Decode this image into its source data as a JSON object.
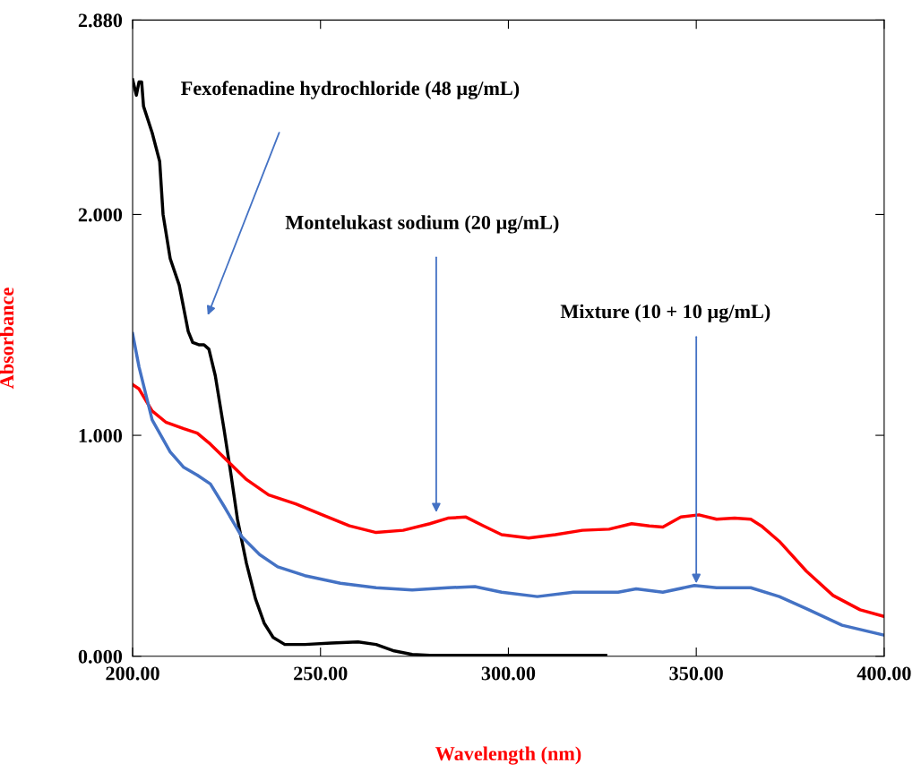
{
  "chart_data": {
    "type": "line",
    "xlabel": "Wavelength (nm)",
    "ylabel": "Absorbance",
    "xlim": [
      200,
      400
    ],
    "ylim": [
      0,
      2.88
    ],
    "xticks": [
      {
        "value": 200,
        "label": "200.00"
      },
      {
        "value": 250,
        "label": "250.00"
      },
      {
        "value": 300,
        "label": "300.00"
      },
      {
        "value": 350,
        "label": "350.00"
      },
      {
        "value": 400,
        "label": "400.00"
      }
    ],
    "yticks": [
      {
        "value": 0,
        "label": "0.000"
      },
      {
        "value": 1,
        "label": "1.000"
      },
      {
        "value": 2,
        "label": "2.000"
      },
      {
        "value": 2.88,
        "label": "2.880"
      }
    ],
    "grid": false,
    "legend": false,
    "marker": "none",
    "line_style": "solid",
    "series": [
      {
        "color": "#000000",
        "x": [
          200,
          201,
          201.7,
          202.4,
          202.9,
          205.2,
          207.2,
          208.1,
          210,
          212.4,
          214.8,
          216,
          217.6,
          219,
          220.3,
          222,
          224.3,
          226.2,
          227.9,
          230.3,
          232.7,
          235,
          237.4,
          240.5,
          245.8,
          252.9,
          260,
          264.8,
          269.6,
          274.4,
          279.1,
          325.9
        ],
        "values": [
          2.61,
          2.54,
          2.6,
          2.6,
          2.49,
          2.37,
          2.24,
          2.0,
          1.8,
          1.68,
          1.47,
          1.42,
          1.41,
          1.41,
          1.39,
          1.27,
          1.03,
          0.82,
          0.62,
          0.42,
          0.26,
          0.15,
          0.085,
          0.053,
          0.053,
          0.06,
          0.065,
          0.053,
          0.024,
          0.008,
          0.004,
          0.004
        ]
      },
      {
        "color": "#ff0000",
        "x": [
          200,
          201.7,
          205.2,
          208.8,
          213.6,
          217.2,
          220.7,
          225.5,
          230.3,
          236.2,
          243.4,
          250.5,
          257.7,
          264.8,
          272,
          279.1,
          283.9,
          288.7,
          293.4,
          298.2,
          305.4,
          312.5,
          319.7,
          326.8,
          332.8,
          337.5,
          341.1,
          345.9,
          350.7,
          355.4,
          360.2,
          364.5,
          367.3,
          372.1,
          379.3,
          386.4,
          393.6,
          400
        ],
        "values": [
          1.23,
          1.21,
          1.11,
          1.06,
          1.03,
          1.01,
          0.96,
          0.88,
          0.8,
          0.73,
          0.69,
          0.64,
          0.59,
          0.56,
          0.57,
          0.6,
          0.625,
          0.63,
          0.59,
          0.55,
          0.535,
          0.55,
          0.57,
          0.575,
          0.6,
          0.59,
          0.585,
          0.63,
          0.64,
          0.62,
          0.625,
          0.62,
          0.59,
          0.52,
          0.385,
          0.275,
          0.21,
          0.18
        ]
      },
      {
        "color": "#4472c4",
        "x": [
          200,
          201.7,
          205.2,
          210,
          213.6,
          217.2,
          220.7,
          224.3,
          229.1,
          233.8,
          238.6,
          245.8,
          255.3,
          264.8,
          274.4,
          283.9,
          291.1,
          298.2,
          307.7,
          317.3,
          329.2,
          334,
          341.1,
          349.5,
          355.4,
          364.5,
          372.1,
          379.3,
          388.8,
          400
        ],
        "values": [
          1.46,
          1.31,
          1.07,
          0.925,
          0.855,
          0.82,
          0.78,
          0.68,
          0.54,
          0.46,
          0.405,
          0.365,
          0.33,
          0.31,
          0.3,
          0.31,
          0.315,
          0.29,
          0.27,
          0.29,
          0.29,
          0.305,
          0.29,
          0.32,
          0.31,
          0.31,
          0.27,
          0.215,
          0.14,
          0.095
        ]
      }
    ],
    "annotations": [
      "Fexofenadine hydrochloride (48 µg/mL)",
      "Montelukast sodium (20 µg/mL)",
      {
        "text": "Mixture (10 + 10 µg/mL)",
        "x": 350,
        "y": 0.33
      }
    ]
  }
}
